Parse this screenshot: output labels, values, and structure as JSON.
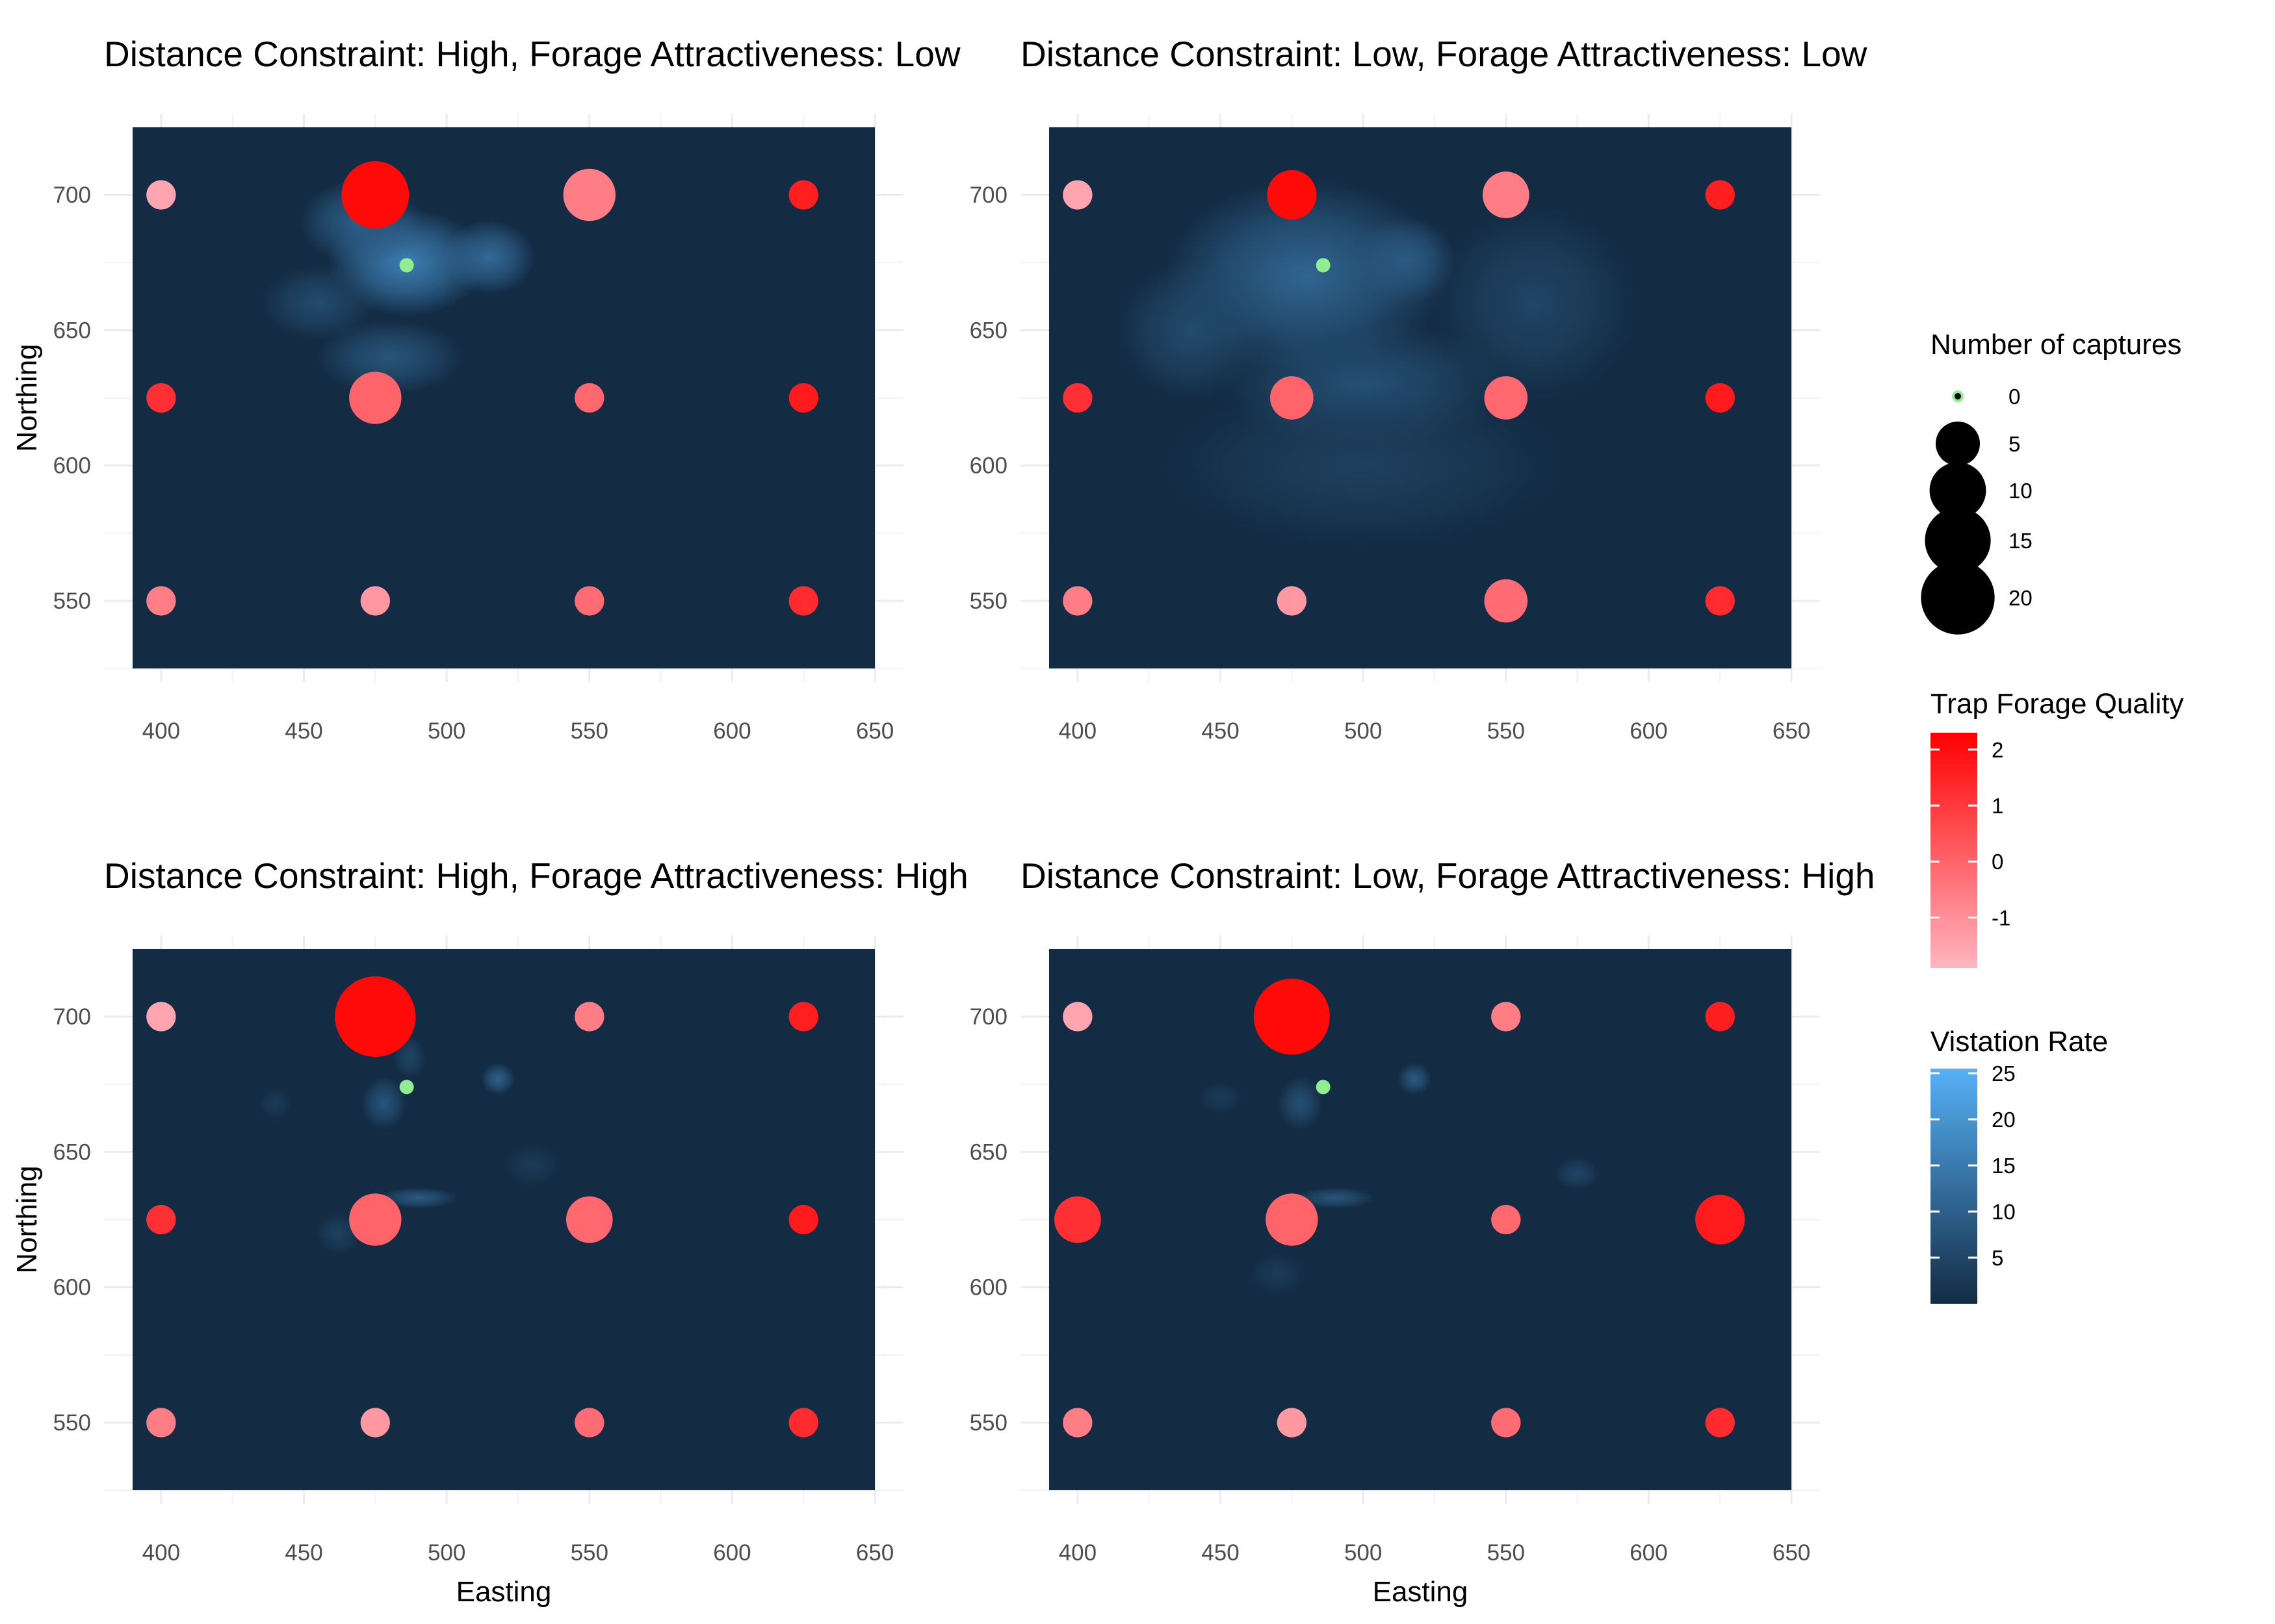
{
  "chart_data": [
    {
      "type": "scatter",
      "title": "Distance Constraint: High, Forage Attractiveness: Low",
      "xlabel": "",
      "ylabel": "Northing",
      "xlim": [
        380,
        660
      ],
      "ylim": [
        520,
        730
      ],
      "x_ticks": [
        "400",
        "450",
        "500",
        "550",
        "600",
        "650"
      ],
      "y_ticks": [
        "550",
        "600",
        "650",
        "700"
      ],
      "raster_extent": {
        "x": [
          390,
          650
        ],
        "y": [
          525,
          725
        ]
      },
      "visitation_hotspots": [
        {
          "x": 486,
          "y": 675,
          "rate": 16,
          "sx": 28,
          "sy": 20
        },
        {
          "x": 470,
          "y": 690,
          "rate": 10,
          "sx": 22,
          "sy": 16
        },
        {
          "x": 515,
          "y": 677,
          "rate": 12,
          "sx": 16,
          "sy": 14
        },
        {
          "x": 480,
          "y": 640,
          "rate": 8,
          "sx": 26,
          "sy": 14
        },
        {
          "x": 455,
          "y": 660,
          "rate": 6,
          "sx": 20,
          "sy": 14
        }
      ],
      "traps": [
        {
          "x": 400,
          "y": 700,
          "captures": 1,
          "forage": -1.5
        },
        {
          "x": 475,
          "y": 700,
          "captures": 14,
          "forage": 2.1
        },
        {
          "x": 550,
          "y": 700,
          "captures": 7,
          "forage": -0.6
        },
        {
          "x": 625,
          "y": 700,
          "captures": 1,
          "forage": 1.6
        },
        {
          "x": 400,
          "y": 625,
          "captures": 1,
          "forage": 1.2
        },
        {
          "x": 475,
          "y": 625,
          "captures": 7,
          "forage": 0.0
        },
        {
          "x": 550,
          "y": 625,
          "captures": 1,
          "forage": -0.1
        },
        {
          "x": 625,
          "y": 625,
          "captures": 1,
          "forage": 1.7
        },
        {
          "x": 400,
          "y": 550,
          "captures": 1,
          "forage": -0.6
        },
        {
          "x": 475,
          "y": 550,
          "captures": 1,
          "forage": -1.2
        },
        {
          "x": 550,
          "y": 550,
          "captures": 1,
          "forage": -0.2
        },
        {
          "x": 625,
          "y": 550,
          "captures": 1,
          "forage": 1.3
        }
      ],
      "start_point": {
        "x": 486,
        "y": 674,
        "captures": 0
      }
    },
    {
      "type": "scatter",
      "title": "Distance Constraint: Low, Forage Attractiveness: Low",
      "xlabel": "",
      "ylabel": "",
      "xlim": [
        380,
        660
      ],
      "ylim": [
        520,
        730
      ],
      "x_ticks": [
        "400",
        "450",
        "500",
        "550",
        "600",
        "650"
      ],
      "y_ticks": [
        "550",
        "600",
        "650",
        "700"
      ],
      "raster_extent": {
        "x": [
          390,
          650
        ],
        "y": [
          525,
          725
        ]
      },
      "visitation_hotspots": [
        {
          "x": 480,
          "y": 670,
          "rate": 11,
          "sx": 50,
          "sy": 36
        },
        {
          "x": 515,
          "y": 676,
          "rate": 9,
          "sx": 18,
          "sy": 16
        },
        {
          "x": 500,
          "y": 630,
          "rate": 7,
          "sx": 50,
          "sy": 24
        },
        {
          "x": 440,
          "y": 650,
          "rate": 6,
          "sx": 26,
          "sy": 26
        },
        {
          "x": 560,
          "y": 660,
          "rate": 5,
          "sx": 36,
          "sy": 36
        },
        {
          "x": 500,
          "y": 600,
          "rate": 4,
          "sx": 70,
          "sy": 30
        }
      ],
      "traps": [
        {
          "x": 400,
          "y": 700,
          "captures": 1,
          "forage": -1.5
        },
        {
          "x": 475,
          "y": 700,
          "captures": 6,
          "forage": 2.1
        },
        {
          "x": 550,
          "y": 700,
          "captures": 5,
          "forage": -0.6
        },
        {
          "x": 625,
          "y": 700,
          "captures": 1,
          "forage": 1.6
        },
        {
          "x": 400,
          "y": 625,
          "captures": 1,
          "forage": 1.2
        },
        {
          "x": 475,
          "y": 625,
          "captures": 4,
          "forage": 0.0
        },
        {
          "x": 550,
          "y": 625,
          "captures": 4,
          "forage": -0.1
        },
        {
          "x": 625,
          "y": 625,
          "captures": 1,
          "forage": 1.7
        },
        {
          "x": 400,
          "y": 550,
          "captures": 1,
          "forage": -0.6
        },
        {
          "x": 475,
          "y": 550,
          "captures": 1,
          "forage": -1.2
        },
        {
          "x": 550,
          "y": 550,
          "captures": 4,
          "forage": -0.2
        },
        {
          "x": 625,
          "y": 550,
          "captures": 1,
          "forage": 1.3
        }
      ],
      "start_point": {
        "x": 486,
        "y": 674,
        "captures": 0
      }
    },
    {
      "type": "scatter",
      "title": "Distance Constraint: High, Forage Attractiveness: High",
      "xlabel": "Easting",
      "ylabel": "Northing",
      "xlim": [
        380,
        660
      ],
      "ylim": [
        520,
        730
      ],
      "x_ticks": [
        "400",
        "450",
        "500",
        "550",
        "600",
        "650"
      ],
      "y_ticks": [
        "550",
        "600",
        "650",
        "700"
      ],
      "raster_extent": {
        "x": [
          390,
          650
        ],
        "y": [
          525,
          725
        ]
      },
      "visitation_hotspots": [
        {
          "x": 478,
          "y": 668,
          "rate": 8,
          "sx": 8,
          "sy": 10
        },
        {
          "x": 518,
          "y": 677,
          "rate": 10,
          "sx": 6,
          "sy": 6
        },
        {
          "x": 490,
          "y": 633,
          "rate": 9,
          "sx": 14,
          "sy": 4
        },
        {
          "x": 487,
          "y": 685,
          "rate": 5,
          "sx": 6,
          "sy": 8
        },
        {
          "x": 462,
          "y": 620,
          "rate": 4,
          "sx": 8,
          "sy": 8
        },
        {
          "x": 440,
          "y": 668,
          "rate": 3,
          "sx": 6,
          "sy": 6
        },
        {
          "x": 530,
          "y": 645,
          "rate": 3,
          "sx": 10,
          "sy": 8
        }
      ],
      "traps": [
        {
          "x": 400,
          "y": 700,
          "captures": 1,
          "forage": -1.5
        },
        {
          "x": 475,
          "y": 700,
          "captures": 22,
          "forage": 2.1
        },
        {
          "x": 550,
          "y": 700,
          "captures": 1,
          "forage": -0.6
        },
        {
          "x": 625,
          "y": 700,
          "captures": 1,
          "forage": 1.6
        },
        {
          "x": 400,
          "y": 625,
          "captures": 1,
          "forage": 1.2
        },
        {
          "x": 475,
          "y": 625,
          "captures": 7,
          "forage": 0.0
        },
        {
          "x": 550,
          "y": 625,
          "captures": 5,
          "forage": -0.1
        },
        {
          "x": 625,
          "y": 625,
          "captures": 1,
          "forage": 1.7
        },
        {
          "x": 400,
          "y": 550,
          "captures": 1,
          "forage": -0.6
        },
        {
          "x": 475,
          "y": 550,
          "captures": 1,
          "forage": -1.2
        },
        {
          "x": 550,
          "y": 550,
          "captures": 1,
          "forage": -0.2
        },
        {
          "x": 625,
          "y": 550,
          "captures": 1,
          "forage": 1.3
        }
      ],
      "start_point": {
        "x": 486,
        "y": 674,
        "captures": 0
      }
    },
    {
      "type": "scatter",
      "title": "Distance Constraint: Low, Forage Attractiveness: High",
      "xlabel": "Easting",
      "ylabel": "",
      "xlim": [
        380,
        660
      ],
      "ylim": [
        520,
        730
      ],
      "x_ticks": [
        "400",
        "450",
        "500",
        "550",
        "600",
        "650"
      ],
      "y_ticks": [
        "550",
        "600",
        "650",
        "700"
      ],
      "raster_extent": {
        "x": [
          390,
          650
        ],
        "y": [
          525,
          725
        ]
      },
      "visitation_hotspots": [
        {
          "x": 478,
          "y": 668,
          "rate": 7,
          "sx": 8,
          "sy": 10
        },
        {
          "x": 518,
          "y": 677,
          "rate": 9,
          "sx": 6,
          "sy": 6
        },
        {
          "x": 490,
          "y": 633,
          "rate": 8,
          "sx": 14,
          "sy": 4
        },
        {
          "x": 575,
          "y": 642,
          "rate": 5,
          "sx": 8,
          "sy": 6
        },
        {
          "x": 450,
          "y": 670,
          "rate": 3,
          "sx": 8,
          "sy": 6
        },
        {
          "x": 470,
          "y": 605,
          "rate": 3,
          "sx": 10,
          "sy": 8
        }
      ],
      "traps": [
        {
          "x": 400,
          "y": 700,
          "captures": 1,
          "forage": -1.5
        },
        {
          "x": 475,
          "y": 700,
          "captures": 19,
          "forage": 2.1
        },
        {
          "x": 550,
          "y": 700,
          "captures": 1,
          "forage": -0.6
        },
        {
          "x": 625,
          "y": 700,
          "captures": 1,
          "forage": 1.6
        },
        {
          "x": 400,
          "y": 625,
          "captures": 5,
          "forage": 1.2
        },
        {
          "x": 475,
          "y": 625,
          "captures": 7,
          "forage": 0.0
        },
        {
          "x": 550,
          "y": 625,
          "captures": 1,
          "forage": -0.1
        },
        {
          "x": 625,
          "y": 625,
          "captures": 6,
          "forage": 1.7
        },
        {
          "x": 400,
          "y": 550,
          "captures": 1,
          "forage": -0.6
        },
        {
          "x": 475,
          "y": 550,
          "captures": 1,
          "forage": -1.2
        },
        {
          "x": 550,
          "y": 550,
          "captures": 1,
          "forage": -0.2
        },
        {
          "x": 625,
          "y": 550,
          "captures": 1,
          "forage": 1.3
        }
      ],
      "start_point": {
        "x": 486,
        "y": 674,
        "captures": 0
      }
    }
  ],
  "legend": {
    "captures": {
      "title": "Number of captures",
      "entries": [
        {
          "label": "0",
          "value": 0
        },
        {
          "label": "5",
          "value": 5
        },
        {
          "label": "10",
          "value": 10
        },
        {
          "label": "15",
          "value": 15
        },
        {
          "label": "20",
          "value": 20
        }
      ]
    },
    "forage": {
      "title": "Trap Forage Quality",
      "range": [
        -1.9,
        2.3
      ],
      "ticks": [
        {
          "label": "2",
          "value": 2
        },
        {
          "label": "1",
          "value": 1
        },
        {
          "label": "0",
          "value": 0
        },
        {
          "label": "-1",
          "value": -1
        }
      ]
    },
    "visitation": {
      "title": "Vistation Rate",
      "range": [
        0,
        25.5
      ],
      "ticks": [
        {
          "label": "25",
          "value": 25
        },
        {
          "label": "20",
          "value": 20
        },
        {
          "label": "15",
          "value": 15
        },
        {
          "label": "10",
          "value": 10
        },
        {
          "label": "5",
          "value": 5
        }
      ]
    }
  },
  "colors": {
    "raster_low": "#132B43",
    "raster_high": "#56B1F7",
    "forage_low": "#FFB6C1",
    "forage_high": "#FF0000",
    "start_point": "#90EE90",
    "legend_point": "#000000"
  }
}
